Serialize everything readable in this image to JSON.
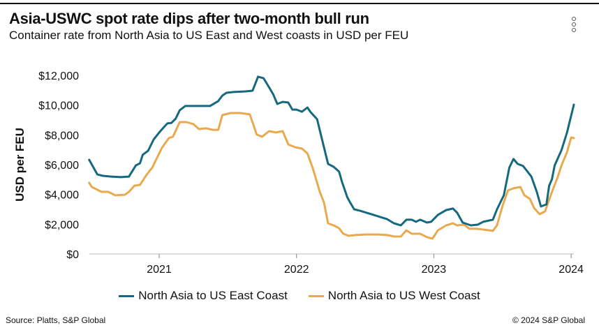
{
  "title": "Asia-USWC spot rate dips after two-month bull run",
  "subtitle": "Container rate from North Asia to US East and West coasts in USD per FEU",
  "menu_icon": "vertical-ellipsis-icon",
  "source": "Source: Platts, S&P Global",
  "copyright": "© 2024 S&P Global",
  "chart_data": {
    "type": "line",
    "title": "Asia-USWC spot rate dips after two-month bull run",
    "xlabel": "",
    "ylabel": "USD per FEU",
    "ylim": [
      0,
      12000
    ],
    "xlim": [
      2020.49,
      2024.02
    ],
    "y_ticks": [
      0,
      2000,
      4000,
      6000,
      8000,
      10000,
      12000
    ],
    "y_tick_labels": [
      "$0",
      "$2,000",
      "$4,000",
      "$6,000",
      "$8,000",
      "$10,000",
      "$12,000"
    ],
    "x_ticks": [
      2021,
      2022,
      2023,
      2024
    ],
    "x_tick_labels": [
      "2021",
      "2022",
      "2023",
      "2024"
    ],
    "grid": false,
    "legend_position": "bottom",
    "series": [
      {
        "name": "North Asia to US East Coast",
        "color": "#14697f",
        "x": [
          2020.49,
          2020.55,
          2020.59,
          2020.65,
          2020.72,
          2020.78,
          2020.83,
          2020.86,
          2020.88,
          2020.92,
          2020.96,
          2021.0,
          2021.04,
          2021.06,
          2021.09,
          2021.12,
          2021.15,
          2021.19,
          2021.24,
          2021.29,
          2021.37,
          2021.43,
          2021.46,
          2021.49,
          2021.54,
          2021.63,
          2021.68,
          2021.72,
          2021.76,
          2021.8,
          2021.83,
          2021.86,
          2021.9,
          2021.94,
          2021.97,
          2022.0,
          2022.04,
          2022.08,
          2022.1,
          2022.15,
          2022.18,
          2022.23,
          2022.27,
          2022.31,
          2022.33,
          2022.37,
          2022.39,
          2022.42,
          2022.46,
          2022.51,
          2022.56,
          2022.61,
          2022.66,
          2022.71,
          2022.76,
          2022.8,
          2022.84,
          2022.87,
          2022.9,
          2022.95,
          2022.98,
          2023.03,
          2023.09,
          2023.14,
          2023.17,
          2023.21,
          2023.27,
          2023.32,
          2023.36,
          2023.43,
          2023.46,
          2023.51,
          2023.55,
          2023.58,
          2023.61,
          2023.65,
          2023.71,
          2023.75,
          2023.78,
          2023.82,
          2023.84,
          2023.86,
          2023.88,
          2023.93,
          2023.97,
          2024.02
        ],
        "values": [
          6330,
          5340,
          5250,
          5200,
          5160,
          5200,
          5950,
          6090,
          6660,
          6940,
          7690,
          8160,
          8580,
          8770,
          8810,
          9090,
          9660,
          9940,
          9940,
          9940,
          9940,
          10270,
          10640,
          10830,
          10880,
          10920,
          10970,
          11910,
          11810,
          11200,
          10730,
          10080,
          10220,
          10170,
          9700,
          9700,
          9560,
          9840,
          9560,
          9050,
          7920,
          6050,
          5860,
          5530,
          4880,
          3800,
          3470,
          3000,
          2910,
          2770,
          2630,
          2480,
          2340,
          2060,
          1920,
          2300,
          2300,
          2160,
          2300,
          2110,
          2160,
          2630,
          2950,
          3050,
          2770,
          2110,
          1920,
          1970,
          2160,
          2300,
          3000,
          3940,
          5810,
          6380,
          6050,
          5910,
          5200,
          4170,
          3190,
          3330,
          4590,
          5020,
          5950,
          6980,
          8160,
          10030
        ]
      },
      {
        "name": "North Asia to US West Coast",
        "color": "#e8a94f",
        "x": [
          2020.49,
          2020.51,
          2020.58,
          2020.63,
          2020.68,
          2020.75,
          2020.78,
          2020.82,
          2020.86,
          2020.91,
          2020.95,
          2020.98,
          2021.02,
          2021.07,
          2021.1,
          2021.15,
          2021.2,
          2021.25,
          2021.29,
          2021.34,
          2021.39,
          2021.43,
          2021.46,
          2021.52,
          2021.59,
          2021.66,
          2021.71,
          2021.75,
          2021.8,
          2021.85,
          2021.9,
          2021.94,
          2021.99,
          2022.04,
          2022.08,
          2022.12,
          2022.17,
          2022.2,
          2022.23,
          2022.27,
          2022.31,
          2022.34,
          2022.38,
          2022.43,
          2022.51,
          2022.59,
          2022.66,
          2022.71,
          2022.76,
          2022.8,
          2022.84,
          2022.9,
          2022.95,
          2022.99,
          2023.03,
          2023.09,
          2023.14,
          2023.17,
          2023.22,
          2023.26,
          2023.31,
          2023.36,
          2023.43,
          2023.46,
          2023.5,
          2023.54,
          2023.58,
          2023.63,
          2023.66,
          2023.7,
          2023.73,
          2023.77,
          2023.81,
          2023.86,
          2023.9,
          2023.93,
          2023.97,
          2024.0,
          2024.02
        ],
        "values": [
          4780,
          4500,
          4170,
          4170,
          3940,
          3980,
          4170,
          4590,
          4640,
          5340,
          5810,
          6380,
          7130,
          7780,
          7880,
          8860,
          8860,
          8720,
          8390,
          8440,
          8340,
          8340,
          9330,
          9470,
          9470,
          9380,
          8020,
          7880,
          8250,
          8160,
          8250,
          7360,
          7170,
          7080,
          6750,
          5720,
          4170,
          3470,
          2060,
          1920,
          1730,
          1360,
          1220,
          1270,
          1310,
          1310,
          1270,
          1170,
          1170,
          1590,
          1360,
          1360,
          1130,
          1030,
          1590,
          1920,
          2060,
          1920,
          1970,
          1690,
          1690,
          1640,
          1550,
          1920,
          3230,
          4270,
          4410,
          4500,
          3940,
          3700,
          3090,
          2670,
          2860,
          4170,
          5110,
          5950,
          6840,
          7830,
          7780
        ]
      }
    ]
  }
}
